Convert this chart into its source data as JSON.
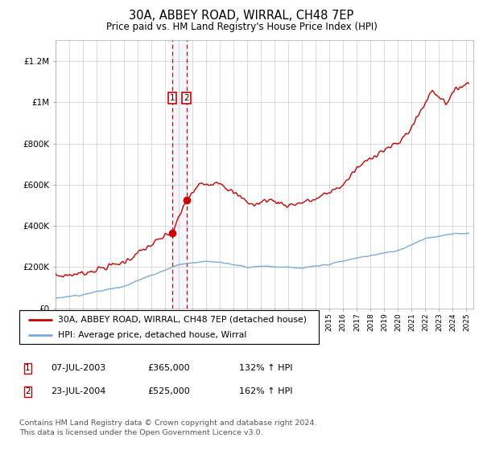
{
  "title": "30A, ABBEY ROAD, WIRRAL, CH48 7EP",
  "subtitle": "Price paid vs. HM Land Registry's House Price Index (HPI)",
  "sale1_date": "07-JUL-2003",
  "sale1_price": 365000,
  "sale1_year": 2003.52,
  "sale2_date": "23-JUL-2004",
  "sale2_price": 525000,
  "sale2_year": 2004.56,
  "legend_line1": "30A, ABBEY ROAD, WIRRAL, CH48 7EP (detached house)",
  "legend_line2": "HPI: Average price, detached house, Wirral",
  "footnote": "Contains HM Land Registry data © Crown copyright and database right 2024.\nThis data is licensed under the Open Government Licence v3.0.",
  "ylim": [
    0,
    1300000
  ],
  "xlim_start": 1995.0,
  "xlim_end": 2025.5,
  "red_color": "#cc0000",
  "blue_color": "#7aaadd",
  "dashed_color": "#cc0000",
  "grid_color": "#cccccc",
  "bg_color": "#ffffff"
}
